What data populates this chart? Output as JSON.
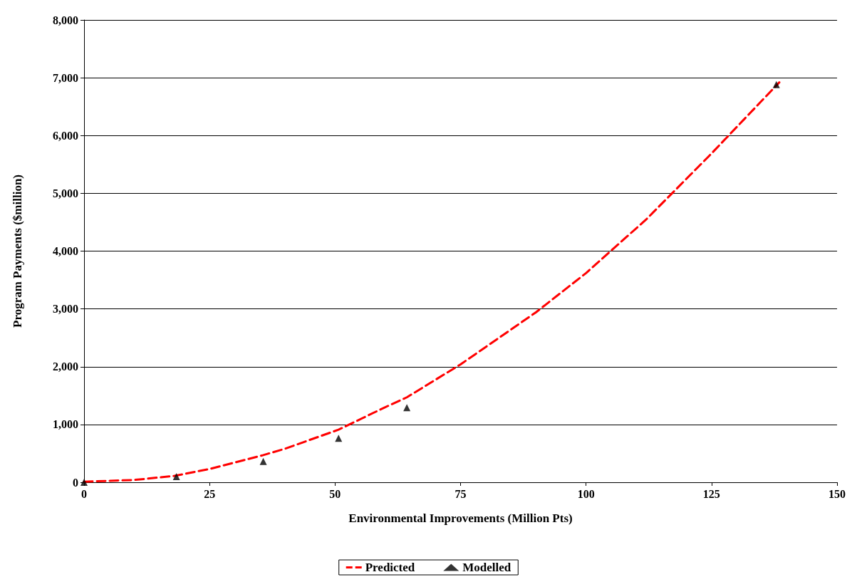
{
  "chart_data": {
    "type": "line",
    "xlabel": "Environmental Improvements (Million Pts)",
    "ylabel": "Program Payments ($million)",
    "xlim": [
      0,
      150
    ],
    "xticks": [
      0,
      25,
      50,
      75,
      100,
      125,
      150
    ],
    "ylim": [
      0,
      8000
    ],
    "yticks": [
      0,
      {
        "value": 1000,
        "label": "1,000"
      },
      {
        "value": 2000,
        "label": "2,000"
      },
      {
        "value": 3000,
        "label": "3,000"
      },
      {
        "value": 4000,
        "label": "4,000"
      },
      {
        "value": 5000,
        "label": "5,000"
      },
      {
        "value": 6000,
        "label": "6,000"
      },
      {
        "value": 7000,
        "label": "7,000"
      },
      {
        "value": 8000,
        "label": "8,000"
      }
    ],
    "grid": "y",
    "legend": "bottom",
    "series": [
      {
        "name": "Predicted",
        "color": "#ff0000",
        "line_style": "dashed",
        "marker": "none",
        "x": [
          0,
          10,
          18,
          25,
          35.7,
          40,
          50.7,
          60,
          64.3,
          75,
          90,
          100,
          112,
          125,
          138.5
        ],
        "values": [
          10,
          40,
          110,
          230,
          470,
          580,
          910,
          1300,
          1470,
          2040,
          2940,
          3620,
          4550,
          5690,
          6920
        ]
      },
      {
        "name": "Modelled",
        "type": "scatter",
        "color": "#000000",
        "marker": "triangle",
        "x": [
          0,
          18.4,
          35.7,
          50.7,
          64.3,
          137.9
        ],
        "values": [
          0,
          100,
          360,
          760,
          1290,
          6880
        ]
      }
    ]
  }
}
